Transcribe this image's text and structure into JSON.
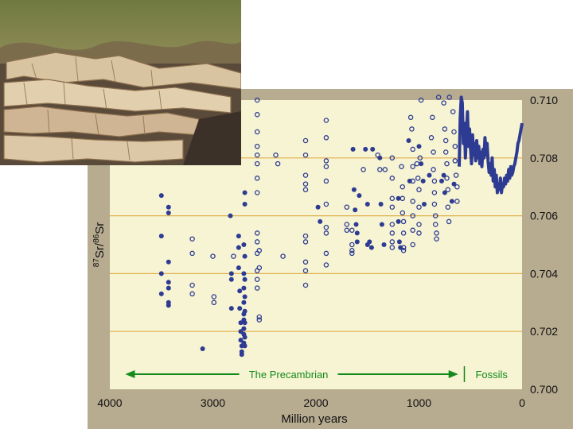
{
  "chart_data": {
    "type": "scatter",
    "title": "",
    "xlabel": "Million years",
    "ylabel_parts": [
      "87",
      "Sr/",
      "86",
      "Sr"
    ],
    "xlim": [
      4000,
      0
    ],
    "ylim": [
      0.7,
      0.71
    ],
    "x_ticks": [
      "4000",
      "3000",
      "2000",
      "1000",
      "0"
    ],
    "y_ticks": [
      "0.700",
      "0.702",
      "0.704",
      "0.706",
      "0.708",
      "0.710"
    ],
    "grid_values": [
      0.702,
      0.704,
      0.706,
      0.708
    ],
    "colors": {
      "plot_bg": "#f6f4d2",
      "panel": "#b7ab90",
      "grid": "#e0b04e",
      "points": "#2e3b93",
      "arrow": "#138a1c"
    },
    "series": [
      {
        "marker": "filled",
        "points": [
          [
            3500,
            0.7067
          ],
          [
            3500,
            0.7053
          ],
          [
            3500,
            0.704
          ],
          [
            3500,
            0.7033
          ],
          [
            3430,
            0.7063
          ],
          [
            3430,
            0.7061
          ],
          [
            3430,
            0.7044
          ],
          [
            3430,
            0.7037
          ],
          [
            3430,
            0.7035
          ],
          [
            3430,
            0.703
          ],
          [
            3430,
            0.7029
          ],
          [
            3100,
            0.7014
          ],
          [
            2830,
            0.706
          ],
          [
            2820,
            0.704
          ],
          [
            2820,
            0.7038
          ],
          [
            2820,
            0.7028
          ],
          [
            2750,
            0.7053
          ],
          [
            2750,
            0.7049
          ],
          [
            2750,
            0.7042
          ],
          [
            2740,
            0.7034
          ],
          [
            2740,
            0.7028
          ],
          [
            2730,
            0.7023
          ],
          [
            2730,
            0.702
          ],
          [
            2730,
            0.7017
          ],
          [
            2720,
            0.7015
          ],
          [
            2720,
            0.7013
          ],
          [
            2720,
            0.7012
          ],
          [
            2700,
            0.705
          ],
          [
            2700,
            0.704
          ],
          [
            2700,
            0.7035
          ],
          [
            2700,
            0.703
          ],
          [
            2700,
            0.7026
          ],
          [
            2700,
            0.7024
          ],
          [
            2700,
            0.7021
          ],
          [
            2700,
            0.7019
          ],
          [
            2700,
            0.7016
          ],
          [
            2690,
            0.7068
          ],
          [
            2690,
            0.7064
          ],
          [
            2690,
            0.7046
          ],
          [
            2690,
            0.7038
          ],
          [
            2690,
            0.7032
          ],
          [
            2690,
            0.7027
          ],
          [
            2690,
            0.7023
          ],
          [
            2690,
            0.7018
          ],
          [
            2690,
            0.7015
          ],
          [
            1980,
            0.7063
          ],
          [
            1960,
            0.7058
          ],
          [
            1640,
            0.7083
          ],
          [
            1630,
            0.7069
          ],
          [
            1620,
            0.7062
          ],
          [
            1610,
            0.7057
          ],
          [
            1600,
            0.7054
          ],
          [
            1600,
            0.7051
          ],
          [
            1580,
            0.7067
          ],
          [
            1520,
            0.7083
          ],
          [
            1500,
            0.7064
          ],
          [
            1500,
            0.705
          ],
          [
            1480,
            0.7051
          ],
          [
            1460,
            0.7049
          ],
          [
            1450,
            0.7083
          ],
          [
            1380,
            0.708
          ],
          [
            1370,
            0.7064
          ],
          [
            1360,
            0.7057
          ],
          [
            1340,
            0.705
          ],
          [
            1200,
            0.7066
          ],
          [
            1200,
            0.7058
          ],
          [
            1190,
            0.7051
          ],
          [
            1180,
            0.7049
          ],
          [
            1100,
            0.7086
          ],
          [
            1090,
            0.7072
          ],
          [
            1000,
            0.7084
          ],
          [
            980,
            0.7078
          ],
          [
            960,
            0.7072
          ],
          [
            950,
            0.7064
          ],
          [
            900,
            0.7074
          ],
          [
            780,
            0.7072
          ],
          [
            760,
            0.7074
          ],
          [
            750,
            0.7068
          ],
          [
            680,
            0.7065
          ],
          [
            660,
            0.7071
          ]
        ]
      },
      {
        "marker": "open",
        "points": [
          [
            3200,
            0.7052
          ],
          [
            3200,
            0.7047
          ],
          [
            3200,
            0.7036
          ],
          [
            3200,
            0.7033
          ],
          [
            3000,
            0.7046
          ],
          [
            2990,
            0.7032
          ],
          [
            2990,
            0.703
          ],
          [
            2800,
            0.7046
          ],
          [
            2570,
            0.71
          ],
          [
            2570,
            0.7095
          ],
          [
            2570,
            0.7089
          ],
          [
            2570,
            0.7084
          ],
          [
            2570,
            0.7081
          ],
          [
            2570,
            0.7078
          ],
          [
            2570,
            0.7073
          ],
          [
            2570,
            0.7068
          ],
          [
            2570,
            0.7054
          ],
          [
            2570,
            0.7051
          ],
          [
            2570,
            0.7047
          ],
          [
            2570,
            0.7041
          ],
          [
            2570,
            0.7038
          ],
          [
            2570,
            0.7035
          ],
          [
            2550,
            0.7048
          ],
          [
            2550,
            0.7042
          ],
          [
            2550,
            0.7025
          ],
          [
            2550,
            0.7024
          ],
          [
            2390,
            0.7081
          ],
          [
            2370,
            0.7078
          ],
          [
            2320,
            0.7046
          ],
          [
            2100,
            0.7086
          ],
          [
            2100,
            0.7081
          ],
          [
            2100,
            0.7074
          ],
          [
            2100,
            0.7071
          ],
          [
            2100,
            0.7069
          ],
          [
            2100,
            0.7053
          ],
          [
            2100,
            0.7051
          ],
          [
            2100,
            0.7044
          ],
          [
            2100,
            0.7041
          ],
          [
            2100,
            0.7036
          ],
          [
            1900,
            0.7093
          ],
          [
            1900,
            0.7087
          ],
          [
            1900,
            0.7079
          ],
          [
            1900,
            0.7077
          ],
          [
            1900,
            0.7072
          ],
          [
            1900,
            0.7064
          ],
          [
            1900,
            0.7056
          ],
          [
            1900,
            0.7054
          ],
          [
            1900,
            0.7047
          ],
          [
            1900,
            0.7043
          ],
          [
            1700,
            0.7063
          ],
          [
            1700,
            0.7057
          ],
          [
            1700,
            0.7055
          ],
          [
            1650,
            0.7055
          ],
          [
            1650,
            0.705
          ],
          [
            1650,
            0.7048
          ],
          [
            1650,
            0.7047
          ],
          [
            1540,
            0.7076
          ],
          [
            1400,
            0.7081
          ],
          [
            1380,
            0.7076
          ],
          [
            1330,
            0.7076
          ],
          [
            1260,
            0.708
          ],
          [
            1260,
            0.7073
          ],
          [
            1260,
            0.7066
          ],
          [
            1260,
            0.7063
          ],
          [
            1260,
            0.7057
          ],
          [
            1260,
            0.7054
          ],
          [
            1260,
            0.7051
          ],
          [
            1260,
            0.7049
          ],
          [
            1170,
            0.7077
          ],
          [
            1160,
            0.707
          ],
          [
            1160,
            0.7066
          ],
          [
            1160,
            0.7061
          ],
          [
            1150,
            0.7058
          ],
          [
            1150,
            0.7054
          ],
          [
            1150,
            0.7049
          ],
          [
            1150,
            0.7048
          ],
          [
            1080,
            0.7094
          ],
          [
            1070,
            0.709
          ],
          [
            1060,
            0.7083
          ],
          [
            1060,
            0.7077
          ],
          [
            1060,
            0.7072
          ],
          [
            1060,
            0.7065
          ],
          [
            1060,
            0.706
          ],
          [
            1060,
            0.7055
          ],
          [
            1060,
            0.705
          ],
          [
            1020,
            0.7078
          ],
          [
            1010,
            0.7073
          ],
          [
            1000,
            0.7069
          ],
          [
            1000,
            0.7063
          ],
          [
            1000,
            0.7057
          ],
          [
            1000,
            0.7054
          ],
          [
            990,
            0.708
          ],
          [
            880,
            0.7087
          ],
          [
            860,
            0.7082
          ],
          [
            860,
            0.7076
          ],
          [
            850,
            0.7072
          ],
          [
            850,
            0.7068
          ],
          [
            850,
            0.7064
          ],
          [
            840,
            0.706
          ],
          [
            840,
            0.7057
          ],
          [
            830,
            0.7054
          ],
          [
            830,
            0.7052
          ],
          [
            870,
            0.7094
          ],
          [
            760,
            0.7099
          ],
          [
            750,
            0.709
          ],
          [
            740,
            0.7086
          ],
          [
            740,
            0.7082
          ],
          [
            730,
            0.7078
          ],
          [
            730,
            0.7073
          ],
          [
            720,
            0.7069
          ],
          [
            720,
            0.7063
          ],
          [
            710,
            0.7058
          ],
          [
            670,
            0.7096
          ],
          [
            660,
            0.7089
          ],
          [
            650,
            0.7084
          ],
          [
            650,
            0.7079
          ],
          [
            640,
            0.7074
          ],
          [
            630,
            0.707
          ],
          [
            630,
            0.7065
          ],
          [
            980,
            0.71
          ],
          [
            810,
            0.7101
          ],
          [
            705,
            0.7101
          ]
        ]
      }
    ],
    "curve": [
      [
        610,
        0.7077
      ],
      [
        600,
        0.7094
      ],
      [
        590,
        0.7101
      ],
      [
        580,
        0.7099
      ],
      [
        570,
        0.7085
      ],
      [
        560,
        0.7092
      ],
      [
        550,
        0.708
      ],
      [
        540,
        0.7089
      ],
      [
        530,
        0.7096
      ],
      [
        520,
        0.7084
      ],
      [
        510,
        0.709
      ],
      [
        500,
        0.7083
      ],
      [
        490,
        0.7078
      ],
      [
        480,
        0.7088
      ],
      [
        470,
        0.7081
      ],
      [
        460,
        0.7085
      ],
      [
        450,
        0.7079
      ],
      [
        440,
        0.7086
      ],
      [
        430,
        0.708
      ],
      [
        420,
        0.7084
      ],
      [
        410,
        0.7078
      ],
      [
        400,
        0.7082
      ],
      [
        390,
        0.7077
      ],
      [
        380,
        0.7083
      ],
      [
        370,
        0.708
      ],
      [
        360,
        0.7087
      ],
      [
        350,
        0.7081
      ],
      [
        340,
        0.7085
      ],
      [
        330,
        0.7079
      ],
      [
        320,
        0.7075
      ],
      [
        310,
        0.7078
      ],
      [
        300,
        0.7074
      ],
      [
        290,
        0.708
      ],
      [
        280,
        0.7072
      ],
      [
        270,
        0.7076
      ],
      [
        260,
        0.707
      ],
      [
        250,
        0.7074
      ],
      [
        240,
        0.7068
      ],
      [
        230,
        0.7071
      ],
      [
        220,
        0.7069
      ],
      [
        210,
        0.7073
      ],
      [
        200,
        0.7068
      ],
      [
        190,
        0.7071
      ],
      [
        180,
        0.707
      ],
      [
        170,
        0.7073
      ],
      [
        160,
        0.7071
      ],
      [
        150,
        0.7074
      ],
      [
        140,
        0.7072
      ],
      [
        130,
        0.7076
      ],
      [
        120,
        0.7073
      ],
      [
        110,
        0.7077
      ],
      [
        100,
        0.7074
      ],
      [
        90,
        0.7075
      ],
      [
        80,
        0.7077
      ],
      [
        70,
        0.7078
      ],
      [
        60,
        0.708
      ],
      [
        50,
        0.7082
      ],
      [
        40,
        0.7085
      ],
      [
        30,
        0.7086
      ],
      [
        20,
        0.7088
      ],
      [
        10,
        0.709
      ],
      [
        5,
        0.7091
      ],
      [
        0,
        0.7092
      ]
    ],
    "annotations": {
      "precambrian": "The Precambrian",
      "fossils": "Fossils",
      "precambrian_span": [
        3850,
        620
      ],
      "divider_at": 560
    }
  }
}
